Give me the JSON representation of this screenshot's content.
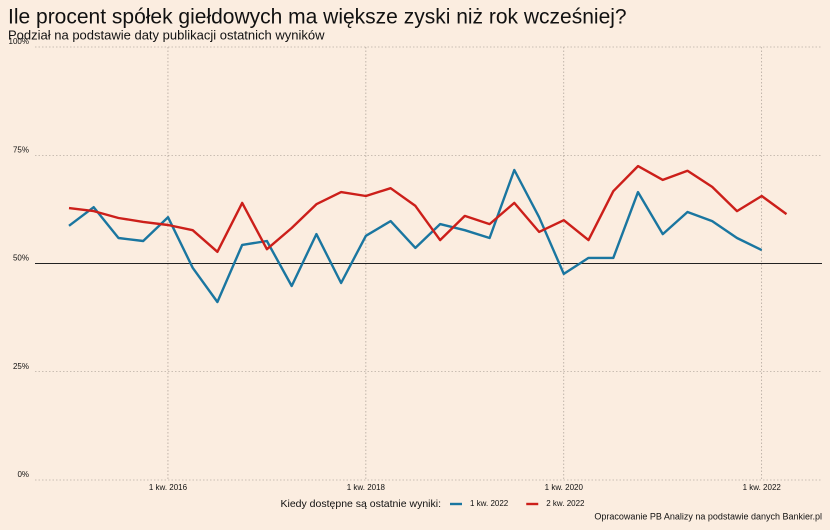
{
  "chart_data": {
    "type": "line",
    "title": "Ile procent spółek giełdowych ma większe zyski niż rok wcześniej?",
    "subtitle": "Podział na podstawie daty publikacji ostatnich wyników",
    "categories": [
      null,
      null,
      null,
      null,
      "1 kw. 2016",
      null,
      null,
      null,
      null,
      null,
      null,
      null,
      "1 kw. 2018",
      null,
      null,
      null,
      null,
      null,
      null,
      null,
      "1 kw. 2020",
      null,
      null,
      null,
      null,
      null,
      null,
      null,
      "1 kw. 2022",
      null
    ],
    "series": [
      {
        "name": "1 kw. 2022",
        "color": "#1a76a0",
        "values": [
          58.7,
          63,
          55.9,
          55.2,
          60.7,
          49,
          41.1,
          54.3,
          55.2,
          44.8,
          56.8,
          45.5,
          56.4,
          59.8,
          53.6,
          59.1,
          57.7,
          55.9,
          71.6,
          60.7,
          47.6,
          51.3,
          51.3,
          66.5,
          56.8,
          61.9,
          59.8,
          55.9,
          53.1,
          null
        ]
      },
      {
        "name": "2 kw. 2022",
        "color": "#cc1f1a",
        "values": [
          62.8,
          62.1,
          60.5,
          59.6,
          58.9,
          57.7,
          52.7,
          64,
          53.3,
          58.2,
          63.7,
          66.5,
          65.6,
          67.4,
          63.3,
          55.4,
          61,
          59.1,
          64,
          57.3,
          60,
          55.4,
          66.7,
          72.5,
          69.3,
          71.4,
          67.7,
          62.1,
          65.6,
          61.4
        ]
      }
    ],
    "ylim": [
      0,
      100
    ],
    "yticks": [
      {
        "value": 0,
        "label": "0%"
      },
      {
        "value": 25,
        "label": "25%"
      },
      {
        "value": 50,
        "label": "50%"
      },
      {
        "value": 75,
        "label": "75%"
      },
      {
        "value": 100,
        "label": "100%"
      }
    ],
    "reference_line": 50,
    "grid": true,
    "legend_title": "Kiedy dostępne są ostatnie wyniki:",
    "legend_position": "bottom",
    "source": "Opracowanie PB Analizy na podstawie danych Bankier.pl"
  }
}
